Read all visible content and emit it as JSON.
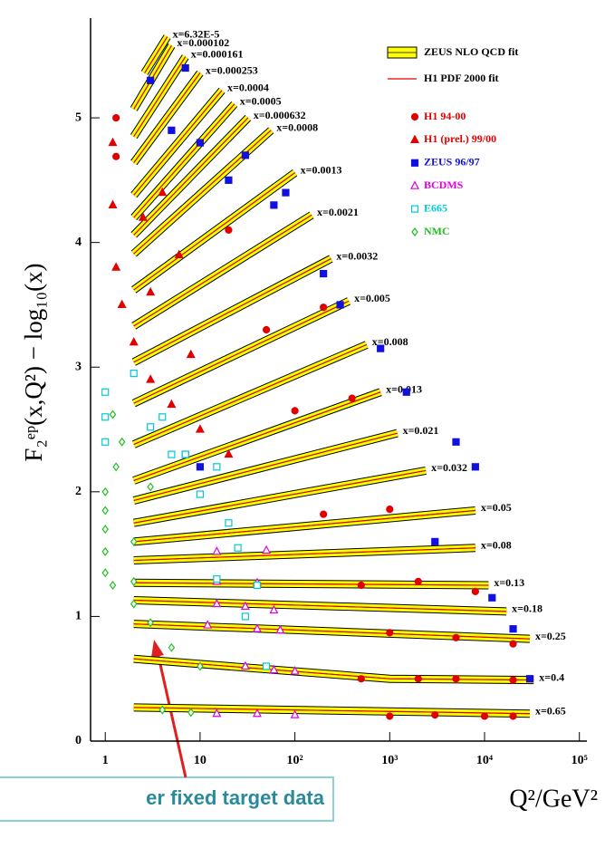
{
  "chart_data": {
    "type": "scatter",
    "xscale": "log",
    "xlim": [
      0.7,
      120000
    ],
    "ylim": [
      0,
      5.8
    ],
    "xticks": [
      1,
      10,
      {
        "value": 100,
        "label": "10²"
      },
      {
        "value": 1000,
        "label": "10³"
      },
      {
        "value": 10000,
        "label": "10⁴"
      },
      {
        "value": 100000,
        "label": "10⁵"
      }
    ],
    "yticks": [
      0,
      1,
      2,
      3,
      4,
      5
    ],
    "xlabel": "Q²/GeV²",
    "ylabel": "F₂ᵉᵖ(x,Q²) − log₁₀(x)",
    "annotation": "er fixed target data",
    "legend_position": "upper right",
    "fit_series": [
      {
        "name": "ZEUS NLO QCD fit",
        "color": "#ffff00",
        "style": "band"
      },
      {
        "name": "H1 PDF 2000 fit",
        "color": "#e00000",
        "style": "line"
      }
    ],
    "bins": [
      {
        "label": "x=6.32E-5",
        "x": [
          2.6,
          4.5
        ],
        "y": [
          5.36,
          5.65
        ]
      },
      {
        "label": "x=0.000102",
        "x": [
          2,
          5
        ],
        "y": [
          5.07,
          5.58
        ]
      },
      {
        "label": "x=0.000161",
        "x": [
          2,
          7
        ],
        "y": [
          4.85,
          5.49
        ]
      },
      {
        "label": "x=0.000253",
        "x": [
          2,
          10
        ],
        "y": [
          4.64,
          5.36
        ]
      },
      {
        "label": "x=0.0004",
        "x": [
          2,
          17
        ],
        "y": [
          4.38,
          5.22
        ]
      },
      {
        "label": "x=0.0005",
        "x": [
          2,
          23
        ],
        "y": [
          4.2,
          5.11
        ]
      },
      {
        "label": "x=0.000632",
        "x": [
          2,
          32
        ],
        "y": [
          4.06,
          5.0
        ]
      },
      {
        "label": "x=0.0008",
        "x": [
          2,
          56
        ],
        "y": [
          3.91,
          4.9
        ]
      },
      {
        "label": "x=0.0013",
        "x": [
          2,
          100
        ],
        "y": [
          3.62,
          4.56
        ]
      },
      {
        "label": "x=0.0021",
        "x": [
          2,
          150
        ],
        "y": [
          3.33,
          4.22
        ]
      },
      {
        "label": "x=0.0032",
        "x": [
          2,
          240
        ],
        "y": [
          3.04,
          3.87
        ]
      },
      {
        "label": "x=0.005",
        "x": [
          2,
          370
        ],
        "y": [
          2.71,
          3.53
        ]
      },
      {
        "label": "x=0.008",
        "x": [
          2,
          570
        ],
        "y": [
          2.38,
          3.18
        ]
      },
      {
        "label": "x=0.013",
        "x": [
          2,
          800
        ],
        "y": [
          2.09,
          2.8
        ]
      },
      {
        "label": "x=0.021",
        "x": [
          2,
          1200
        ],
        "y": [
          1.93,
          2.47
        ]
      },
      {
        "label": "x=0.032",
        "x": [
          2,
          2400
        ],
        "y": [
          1.75,
          2.17
        ]
      },
      {
        "label": "x=0.05",
        "x": [
          2,
          8000
        ],
        "y": [
          1.6,
          1.85
        ]
      },
      {
        "label": "x=0.08",
        "x": [
          2,
          8000
        ],
        "y": [
          1.45,
          1.55
        ]
      },
      {
        "label": "x=0.13",
        "x": [
          2,
          11000
        ],
        "y": [
          1.27,
          1.25
        ]
      },
      {
        "label": "x=0.18",
        "x": [
          2,
          17000
        ],
        "y": [
          1.13,
          1.04
        ]
      },
      {
        "label": "x=0.25",
        "x": [
          2,
          30000
        ],
        "y": [
          0.94,
          0.82
        ]
      },
      {
        "label": "x=0.4",
        "x": [
          2,
          1000,
          33000
        ],
        "y": [
          0.66,
          0.5,
          0.49
        ]
      },
      {
        "label": "x=0.65",
        "x": [
          2,
          30000
        ],
        "y": [
          0.27,
          0.22
        ]
      }
    ],
    "series": [
      {
        "name": "H1 94-00",
        "color": "#e00000",
        "marker": "circle",
        "filled": true,
        "x": [
          1.3,
          1.3,
          1000,
          3000,
          10000,
          20000,
          500,
          2000,
          5000,
          20000,
          1000,
          5000,
          20000,
          500,
          2000,
          8000,
          200,
          1000,
          100,
          400,
          50,
          200,
          20
        ],
        "y": [
          5.0,
          4.69,
          0.2,
          0.21,
          0.2,
          0.2,
          0.5,
          0.5,
          0.5,
          0.49,
          0.87,
          0.83,
          0.78,
          1.25,
          1.28,
          1.2,
          1.82,
          1.86,
          2.65,
          2.75,
          3.3,
          3.48,
          4.1
        ]
      },
      {
        "name": "H1 (prel.) 99/00",
        "color": "#e00000",
        "marker": "triangle",
        "filled": true,
        "x": [
          1.2,
          1.2,
          1.3,
          1.5,
          2,
          3,
          5,
          10,
          20,
          2.5,
          4,
          6,
          3,
          8
        ],
        "y": [
          4.8,
          4.3,
          3.8,
          3.5,
          3.2,
          2.9,
          2.7,
          2.5,
          2.3,
          4.2,
          4.4,
          3.9,
          3.6,
          3.1
        ]
      },
      {
        "name": "ZEUS 96/97",
        "color": "#1010e0",
        "marker": "square",
        "filled": true,
        "x": [
          3,
          7,
          5,
          10,
          20,
          30,
          60,
          80,
          200,
          300,
          800,
          1500,
          5000,
          8000,
          3000,
          12000,
          20000,
          30000,
          7,
          10
        ],
        "y": [
          5.3,
          5.4,
          4.9,
          4.8,
          4.5,
          4.7,
          4.3,
          4.4,
          3.75,
          3.5,
          3.15,
          2.8,
          2.4,
          2.2,
          1.6,
          1.15,
          0.9,
          0.5,
          2.3,
          2.2
        ]
      },
      {
        "name": "BCDMS",
        "color": "#e000e0",
        "marker": "triangle",
        "filled": false,
        "x": [
          15,
          30,
          60,
          12,
          40,
          70,
          30,
          60,
          100,
          15,
          40,
          100,
          15,
          40,
          15,
          50
        ],
        "y": [
          1.1,
          1.08,
          1.05,
          0.93,
          0.9,
          0.89,
          0.6,
          0.57,
          0.56,
          0.22,
          0.22,
          0.21,
          1.28,
          1.27,
          1.52,
          1.53
        ]
      },
      {
        "name": "E665",
        "color": "#00c8d8",
        "marker": "square",
        "filled": false,
        "x": [
          1,
          1,
          1,
          2,
          3,
          4,
          5,
          7,
          15,
          10,
          20,
          25,
          40,
          30,
          15,
          50
        ],
        "y": [
          2.8,
          2.6,
          2.4,
          2.95,
          2.52,
          2.6,
          2.3,
          2.3,
          2.2,
          1.98,
          1.75,
          1.55,
          1.25,
          1.0,
          1.3,
          0.6
        ]
      },
      {
        "name": "NMC",
        "color": "#20c020",
        "marker": "diamond",
        "filled": false,
        "x": [
          1.2,
          1.5,
          1.3,
          1,
          1,
          1,
          1,
          1,
          1.2,
          2,
          3,
          5,
          10,
          4,
          8,
          2,
          2,
          3
        ],
        "y": [
          2.62,
          2.4,
          2.2,
          2.0,
          1.85,
          1.7,
          1.52,
          1.35,
          1.25,
          1.1,
          0.95,
          0.75,
          0.6,
          0.25,
          0.23,
          1.28,
          1.6,
          2.04
        ]
      }
    ]
  }
}
